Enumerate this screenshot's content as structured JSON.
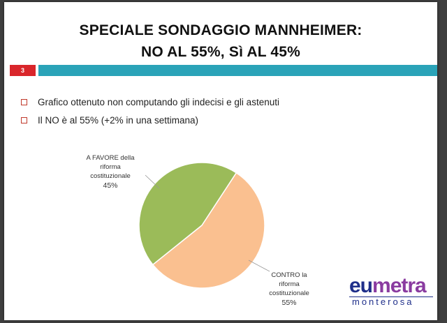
{
  "slide": {
    "title_line1": "SPECIALE SONDAGGIO MANNHEIMER:",
    "title_line2": "NO AL 55%, Sì AL 45%",
    "page_number": "3",
    "bullets": [
      "Grafico ottenuto non computando gli indecisi e gli astenuti",
      "Il NO è al 55% (+2% in una settimana)"
    ],
    "logo": {
      "part1": "eu",
      "part2": "metra",
      "sub": "monterosa"
    }
  },
  "colors": {
    "favore": "#9bbb59",
    "contro": "#fac090",
    "accent_red": "#d9262b",
    "accent_blue": "#2aa3b8"
  },
  "chart_data": {
    "type": "pie",
    "title": "",
    "slices": [
      {
        "label_lines": [
          "A FAVORE della",
          "riforma",
          "costituzionale"
        ],
        "value": 45,
        "value_label": "45%",
        "color": "#9bbb59"
      },
      {
        "label_lines": [
          "CONTRO la",
          "riforma",
          "costituzionale"
        ],
        "value": 55,
        "value_label": "55%",
        "color": "#fac090"
      }
    ]
  }
}
